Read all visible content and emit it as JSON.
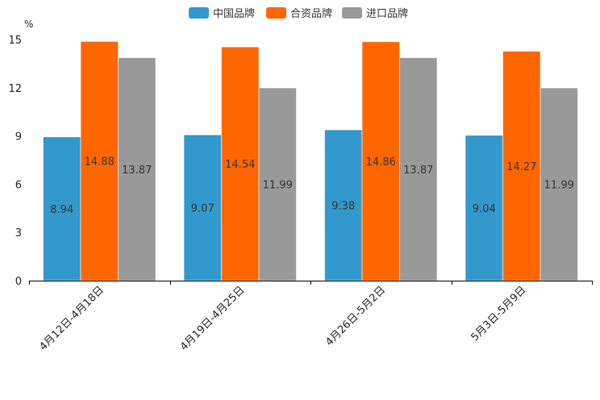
{
  "chart_data": {
    "type": "bar",
    "title": "",
    "xlabel": "",
    "ylabel": "%",
    "ylim": [
      0,
      15
    ],
    "yticks": [
      0,
      3,
      6,
      9,
      12,
      15
    ],
    "grid": false,
    "legend_position": "top-center",
    "categories": [
      "4月12日-4月18日",
      "4月19日-4月25日",
      "4月26日-5月2日",
      "5月3日-5月9日"
    ],
    "series": [
      {
        "name": "中国品牌",
        "color": "#3399CC",
        "values": [
          8.94,
          9.07,
          9.38,
          9.04
        ]
      },
      {
        "name": "合资品牌",
        "color": "#FF6600",
        "values": [
          14.88,
          14.54,
          14.86,
          14.27
        ]
      },
      {
        "name": "进口品牌",
        "color": "#999999",
        "values": [
          13.87,
          11.99,
          13.87,
          11.99
        ]
      }
    ]
  }
}
